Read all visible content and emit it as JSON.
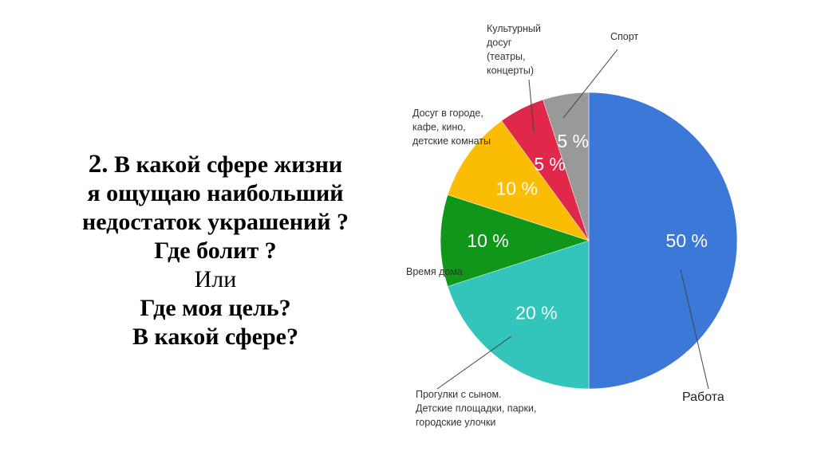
{
  "question": {
    "number": "2.",
    "line1": "В какой сфере жизни",
    "line2": "я ощущаю наибольший",
    "line3": "недостаток украшений ?",
    "line4": "Где болит ?",
    "line5": "Или",
    "line6": "Где моя цель?",
    "line7": "В какой сфере?"
  },
  "chart_data": {
    "type": "pie",
    "title": "",
    "slices": [
      {
        "label": "Работа",
        "lines": [
          "Работа"
        ],
        "value": 50,
        "value_label": "50 %",
        "color": "#3c78d8"
      },
      {
        "label": "Прогулки с сыном. Детские площадки, парки, городские улочки",
        "lines": [
          "Прогулки с сыном.",
          "Детские площадки, парки,",
          "городские улочки"
        ],
        "value": 20,
        "value_label": "20 %",
        "color": "#33c5bc"
      },
      {
        "label": "Время дома",
        "lines": [
          "Время дома"
        ],
        "value": 10,
        "value_label": "10 %",
        "color": "#109618"
      },
      {
        "label": "Досуг в городе, кафе, кино, детские комнаты",
        "lines": [
          "Досуг в городе,",
          "кафе, кино,",
          "детские комнаты"
        ],
        "value": 10,
        "value_label": "10 %",
        "color": "#fbbc04"
      },
      {
        "label": "Культурный досуг (театры, концерты)",
        "lines": [
          "Культурный",
          "досуг",
          "(театры,",
          "концерты)"
        ],
        "value": 5,
        "value_label": "5 %",
        "color": "#e0284a"
      },
      {
        "label": "Спорт",
        "lines": [
          "Спорт"
        ],
        "value": 5,
        "value_label": "5 %",
        "color": "#999999"
      }
    ]
  }
}
